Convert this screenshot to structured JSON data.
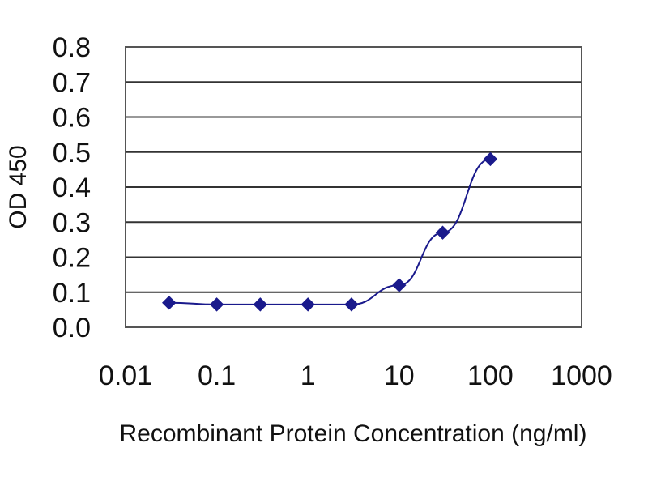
{
  "chart_data": {
    "type": "line",
    "title": "",
    "xlabel": "Recombinant Protein Concentration (ng/ml)",
    "ylabel": "OD 450",
    "x_scale": "log",
    "xlim": [
      0.01,
      1000
    ],
    "ylim": [
      0.0,
      0.8
    ],
    "x_ticks": [
      "0.01",
      "0.1",
      "1",
      "10",
      "100",
      "1000"
    ],
    "y_ticks": [
      "0.0",
      "0.1",
      "0.2",
      "0.3",
      "0.4",
      "0.5",
      "0.6",
      "0.7",
      "0.8"
    ],
    "grid": "horizontal",
    "legend": "none",
    "series": [
      {
        "x": [
          0.03,
          0.1,
          0.3,
          1,
          3,
          10,
          30,
          100
        ],
        "y": [
          0.07,
          0.065,
          0.065,
          0.065,
          0.065,
          0.12,
          0.27,
          0.48
        ],
        "color": "#1a1a8c",
        "marker": "diamond"
      }
    ],
    "plot_background": "#ffffff",
    "grid_color": "#333333"
  }
}
